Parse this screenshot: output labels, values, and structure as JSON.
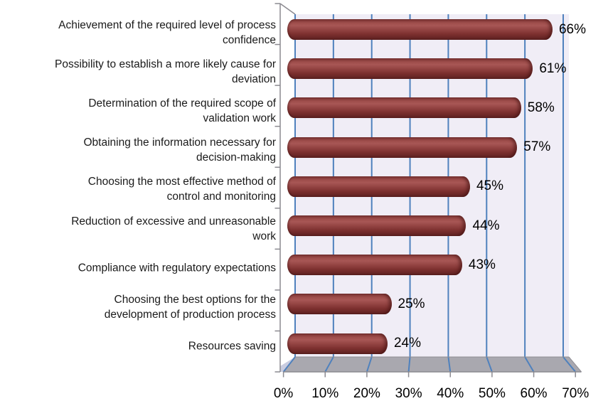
{
  "chart_data": {
    "type": "bar",
    "orientation": "horizontal",
    "style": "3d-cylinder",
    "title": "",
    "xlabel": "",
    "ylabel": "",
    "xlim": [
      0,
      70
    ],
    "x_tick_step": 10,
    "x_tick_labels": [
      "0%",
      "10%",
      "20%",
      "30%",
      "40%",
      "50%",
      "60%",
      "70%"
    ],
    "grid": "vertical-gridlines",
    "legend": "none",
    "categories": [
      "Achievement of the required level of process\nconfidence",
      "Possibility to establish a more likely cause for\ndeviation",
      "Determination of the required scope of\nvalidation work",
      "Obtaining the information necessary for\ndecision-making",
      "Choosing the most effective method of\ncontrol and monitoring",
      "Reduction of excessive and unreasonable\nwork",
      "Compliance with regulatory expectations",
      "Choosing the best options for the\ndevelopment of production process",
      "Resources saving"
    ],
    "values": [
      66,
      61,
      58,
      57,
      45,
      44,
      43,
      25,
      24
    ],
    "value_labels": [
      "66%",
      "61%",
      "58%",
      "57%",
      "45%",
      "44%",
      "43%",
      "25%",
      "24%"
    ],
    "colors": {
      "bar_gradient": [
        "#7c3433",
        "#9e4d4b",
        "#a85755",
        "#964645",
        "#7d302f",
        "#5d2121"
      ],
      "gridline": "#4f81bd",
      "plot_background": "#f0edf6",
      "floor": "#a9a8af",
      "floor_edge": "#8f8e94",
      "floor_corner": "#c9cce0",
      "axis": "#8b8a90",
      "label_text": "#1a1a1a"
    }
  }
}
